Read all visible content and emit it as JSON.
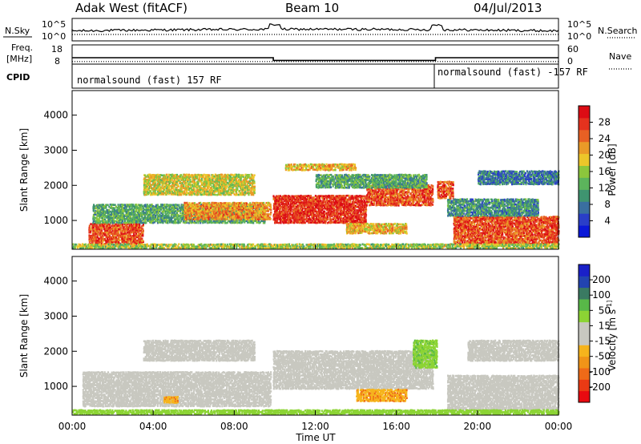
{
  "header": {
    "radar": "Adak West (fitACF)",
    "beam": "Beam 10",
    "date": "04/Jul/2013"
  },
  "noise_panel": {
    "left_label": "N.Sky",
    "right_label": "N.Search",
    "left_ticks": [
      "10^5",
      "10^0"
    ],
    "right_ticks": [
      "10^5",
      "10^0"
    ]
  },
  "freq_panel": {
    "left_label_1": "Freq.",
    "left_label_2": "[MHz]",
    "right_label": "Nave",
    "left_ticks": [
      "18",
      "8"
    ],
    "right_ticks": [
      "60",
      "0"
    ],
    "freq_segments": [
      {
        "start_h": 0.0,
        "end_h": 9.93,
        "mhz": 12.0
      },
      {
        "start_h": 9.93,
        "end_h": 17.93,
        "mhz": 10.3
      },
      {
        "start_h": 17.93,
        "end_h": 24.0,
        "mhz": 12.0
      }
    ],
    "nave_level": 8
  },
  "cpid": {
    "label": "CPID",
    "programs": [
      {
        "text": "normalsound (fast) 157 RF",
        "start_h": 0.0
      },
      {
        "text": "normalsound (fast) -157 RF",
        "start_h": 17.93
      }
    ]
  },
  "x_axis": {
    "label": "Time UT",
    "ticks": [
      "00:00",
      "04:00",
      "08:00",
      "12:00",
      "16:00",
      "20:00",
      "00:00"
    ],
    "range_h": [
      0,
      24
    ]
  },
  "chart_data": [
    {
      "type": "heatmap",
      "ylabel": "Slant Range [km]",
      "y_ticks": [
        "1000",
        "2000",
        "3000",
        "4000"
      ],
      "ylim": [
        180,
        4700
      ],
      "xlim_hours": [
        0,
        24
      ],
      "colorbar": {
        "label": "Power [dB]",
        "ticks": [
          "28",
          "24",
          "20",
          "16",
          "12",
          "8",
          "4"
        ],
        "range": [
          0,
          32
        ],
        "colors": [
          "#0a18d8",
          "#2a3ec8",
          "#3a6fa0",
          "#3f9470",
          "#5cb45c",
          "#8cc63c",
          "#ecc62a",
          "#ea9a28",
          "#e86024",
          "#e4321e",
          "#dc0c14"
        ]
      },
      "regions": [
        {
          "t0": 0.8,
          "t1": 3.5,
          "r0": 300,
          "r1": 900,
          "power": 26
        },
        {
          "t0": 1.0,
          "t1": 9.5,
          "r0": 900,
          "r1": 1450,
          "power": 12
        },
        {
          "t0": 3.5,
          "t1": 9.0,
          "r0": 1700,
          "r1": 2300,
          "power": 18
        },
        {
          "t0": 5.5,
          "t1": 9.8,
          "r0": 1000,
          "r1": 1500,
          "power": 22
        },
        {
          "t0": 9.9,
          "t1": 14.5,
          "r0": 900,
          "r1": 1700,
          "power": 28
        },
        {
          "t0": 14.5,
          "t1": 17.8,
          "r0": 1400,
          "r1": 2000,
          "power": 26
        },
        {
          "t0": 10.5,
          "t1": 14.0,
          "r0": 2400,
          "r1": 2600,
          "power": 20
        },
        {
          "t0": 13.5,
          "t1": 16.5,
          "r0": 600,
          "r1": 900,
          "power": 20
        },
        {
          "t0": 12.0,
          "t1": 17.5,
          "r0": 1900,
          "r1": 2300,
          "power": 12
        },
        {
          "t0": 18.0,
          "t1": 18.8,
          "r0": 1600,
          "r1": 2100,
          "power": 26
        },
        {
          "t0": 18.8,
          "t1": 24.0,
          "r0": 300,
          "r1": 1100,
          "power": 26
        },
        {
          "t0": 18.5,
          "t1": 23.0,
          "r0": 1100,
          "r1": 1600,
          "power": 10
        },
        {
          "t0": 20.0,
          "t1": 24.0,
          "r0": 2000,
          "r1": 2400,
          "power": 8
        },
        {
          "t0": 0.0,
          "t1": 24.0,
          "r0": 180,
          "r1": 320,
          "power": 16
        }
      ]
    },
    {
      "type": "heatmap",
      "ylabel": "Slant Range [km]",
      "y_ticks": [
        "1000",
        "2000",
        "3000",
        "4000"
      ],
      "ylim": [
        180,
        4700
      ],
      "xlim_hours": [
        0,
        24
      ],
      "colorbar": {
        "label": "Velocity [m s^-1]",
        "ticks": [
          "200",
          "100",
          "50",
          "15",
          "-15",
          "-50",
          "-100",
          "-200"
        ],
        "range": [
          -250,
          250
        ],
        "colors": [
          "#e80a10",
          "#ea3a14",
          "#ee6a18",
          "#f09418",
          "#f6b41c",
          "#c8c8c0",
          "#c8c8c0",
          "#8cd434",
          "#58b848",
          "#3a7a62",
          "#2244b0",
          "#1a20c8"
        ]
      },
      "regions": [
        {
          "t0": 0.5,
          "t1": 9.8,
          "r0": 400,
          "r1": 1400,
          "velocity": 0
        },
        {
          "t0": 3.5,
          "t1": 9.0,
          "r0": 1700,
          "r1": 2300,
          "velocity": 0
        },
        {
          "t0": 9.9,
          "t1": 17.8,
          "r0": 900,
          "r1": 2000,
          "velocity": 0
        },
        {
          "t0": 14.0,
          "t1": 16.5,
          "r0": 550,
          "r1": 900,
          "velocity": -40
        },
        {
          "t0": 4.5,
          "t1": 5.2,
          "r0": 500,
          "r1": 700,
          "velocity": -40
        },
        {
          "t0": 16.8,
          "t1": 18.0,
          "r0": 1500,
          "r1": 2300,
          "velocity": 40
        },
        {
          "t0": 18.5,
          "t1": 24.0,
          "r0": 300,
          "r1": 1300,
          "velocity": 0
        },
        {
          "t0": 19.5,
          "t1": 24.0,
          "r0": 1700,
          "r1": 2300,
          "velocity": 0
        },
        {
          "t0": 0.0,
          "t1": 24.0,
          "r0": 180,
          "r1": 320,
          "velocity": 30
        }
      ]
    }
  ]
}
